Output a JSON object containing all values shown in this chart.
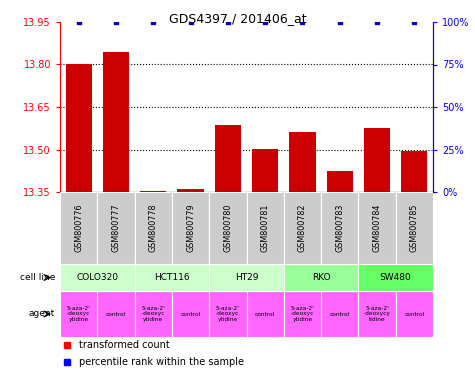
{
  "title": "GDS4397 / 201406_at",
  "samples": [
    "GSM800776",
    "GSM800777",
    "GSM800778",
    "GSM800779",
    "GSM800780",
    "GSM800781",
    "GSM800782",
    "GSM800783",
    "GSM800784",
    "GSM800785"
  ],
  "red_values": [
    13.8,
    13.845,
    13.355,
    13.36,
    13.585,
    13.5,
    13.56,
    13.425,
    13.575,
    13.495
  ],
  "blue_values": [
    100,
    100,
    100,
    100,
    100,
    100,
    100,
    100,
    100,
    100
  ],
  "ylim_left": [
    13.35,
    13.95
  ],
  "ylim_right": [
    0,
    100
  ],
  "yticks_left": [
    13.35,
    13.5,
    13.65,
    13.8,
    13.95
  ],
  "yticks_right": [
    0,
    25,
    50,
    75,
    100
  ],
  "ytick_labels_right": [
    "0%",
    "25%",
    "50%",
    "75%",
    "100%"
  ],
  "cell_lines": [
    {
      "name": "COLO320",
      "start": 0,
      "end": 2,
      "color": "#ccffcc"
    },
    {
      "name": "HCT116",
      "start": 2,
      "end": 4,
      "color": "#ccffcc"
    },
    {
      "name": "HT29",
      "start": 4,
      "end": 6,
      "color": "#ccffcc"
    },
    {
      "name": "RKO",
      "start": 6,
      "end": 8,
      "color": "#99ff99"
    },
    {
      "name": "SW480",
      "start": 8,
      "end": 10,
      "color": "#66ff66"
    }
  ],
  "agents": [
    {
      "name": "5-aza-2'\n-deoxyc\nytidine",
      "color": "#ff66ff"
    },
    {
      "name": "control",
      "color": "#ff66ff"
    },
    {
      "name": "5-aza-2'\n-deoxyc\nytidine",
      "color": "#ff66ff"
    },
    {
      "name": "control",
      "color": "#ff66ff"
    },
    {
      "name": "5-aza-2'\n-deoxyc\nytidine",
      "color": "#ff66ff"
    },
    {
      "name": "control",
      "color": "#ff66ff"
    },
    {
      "name": "5-aza-2'\n-deoxyc\nytidine",
      "color": "#ff66ff"
    },
    {
      "name": "control",
      "color": "#ff66ff"
    },
    {
      "name": "5-aza-2'\n-deoxycy\ntidine",
      "color": "#ff66ff"
    },
    {
      "name": "control",
      "color": "#ff66ff"
    }
  ],
  "bar_color": "#cc0000",
  "dot_color": "#0000cc",
  "sample_bg_color": "#cccccc",
  "legend_red": "transformed count",
  "legend_blue": "percentile rank within the sample"
}
